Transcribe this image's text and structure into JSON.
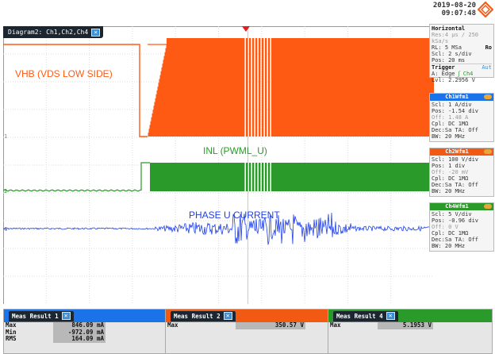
{
  "header": {
    "date": "2019-08-20",
    "time": "09:07:48",
    "logo": "rohde-schwarz-diamond"
  },
  "diagram": {
    "tab_title": "Diagram2: Ch1,Ch2,Ch4",
    "close_glyph": "✕"
  },
  "signals": {
    "vhb_label": "VHB (VDS LOW SIDE)",
    "inl_label": "INL (PWML_U)",
    "phase_label": "PHASE U CURRENT",
    "ch1_marker": "1",
    "ch2_marker": "2",
    "ch4_marker": "4"
  },
  "colors": {
    "ch1": "#ff5a14",
    "ch2": "#2a9a2a",
    "ch4": "#2040e8",
    "trigger": "#e02020"
  },
  "horizontal": {
    "title": "Horizontal",
    "resolution": "Res:4 µs / 250 kSa/s",
    "record_length": "RL: 5 MSa",
    "record_flag": "Ro",
    "scale": "Scl: 2 s/div",
    "position": "Pos: 20 ms",
    "trigger_title": "Trigger",
    "trigger_mode": "Aut",
    "trigger_type": "A: Edge",
    "trigger_source": "Ch4",
    "trigger_level": "Lvl: 2.2956 V"
  },
  "wfm_panels": [
    {
      "title": "Ch1Wfm1",
      "color": "#1a73e8",
      "lines": [
        "Scl: 1 A/div",
        "Pos: -1.54 div",
        "Off: 1.48 A",
        "Cpl: DC 1MΩ",
        "Dec:Sa     TA: Off",
        "BW: 20 MHz"
      ]
    },
    {
      "title": "Ch2Wfm1",
      "color": "#f25a14",
      "lines": [
        "Scl: 100 V/div",
        "Pos: 1 div",
        "Off: -20 mV",
        "Cpl: DC 1MΩ",
        "Dec:Sa     TA: Off",
        "BW: 20 MHz"
      ]
    },
    {
      "title": "Ch4Wfm1",
      "color": "#2a9a2a",
      "lines": [
        "Scl: 5 V/div",
        "Pos: -0.96 div",
        "Off: 0 V",
        "Cpl: DC 1MΩ",
        "Dec:Sa     TA: Off",
        "BW: 20 MHz"
      ]
    }
  ],
  "meas_results": [
    {
      "title": "Meas Result 1",
      "color": "#1a73e8",
      "rows": [
        {
          "key": "Max",
          "value": "846.09 mA"
        },
        {
          "key": "Min",
          "value": "-972.09 mA"
        },
        {
          "key": "RMS",
          "value": "164.09 mA"
        }
      ]
    },
    {
      "title": "Meas Result 2",
      "color": "#f25a14",
      "rows": [
        {
          "key": "Max",
          "value": "350.57 V"
        }
      ]
    },
    {
      "title": "Meas Result 4",
      "color": "#2a9a2a",
      "rows": [
        {
          "key": "Max",
          "value": "5.1953 V"
        }
      ]
    }
  ]
}
